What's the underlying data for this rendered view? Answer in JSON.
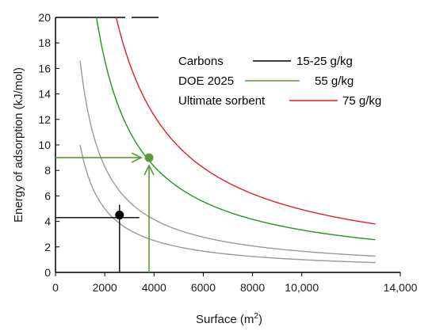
{
  "chart_data": {
    "type": "line",
    "xlabel": "Surface (m",
    "xlabel_sup": "2",
    "xlabel_end": ")",
    "ylabel": "Energy of adsorption (kJ/mol)",
    "xlim": [
      0,
      14000
    ],
    "ylim": [
      0,
      20
    ],
    "x_ticks": [
      {
        "value": 0,
        "label": "0"
      },
      {
        "value": 2000,
        "label": "2000"
      },
      {
        "value": 4000,
        "label": "4000"
      },
      {
        "value": 6000,
        "label": "6000"
      },
      {
        "value": 8000,
        "label": "8000"
      },
      {
        "value": 10000,
        "label": "10,000"
      },
      {
        "value": 14000,
        "label": "14,000"
      }
    ],
    "y_ticks": [
      0,
      2,
      4,
      6,
      8,
      10,
      12,
      14,
      16,
      18,
      20
    ],
    "series": [
      {
        "name": "Carbons",
        "legend_value": "15-25 g/kg",
        "color": "#000000",
        "curve_color": "#9a9a9a",
        "k": 10000,
        "x_start": 1000,
        "x_end": 13000
      },
      {
        "name": "Carbons",
        "legend_value": "15-25 g/kg",
        "color": "#000000",
        "curve_color": "#9a9a9a",
        "k": 16600,
        "x_start": 1000,
        "x_end": 13000
      },
      {
        "name": "DOE 2025",
        "legend_value": "55 g/kg",
        "color": "#5a9a3a",
        "curve_color": "#1a9a1a",
        "k": 33300,
        "x_start": 1665,
        "x_end": 13000
      },
      {
        "name": "Ultimate sorbent",
        "legend_value": "75 g/kg",
        "color": "#e02020",
        "curve_color": "#e02020",
        "k": 49300,
        "x_start": 2465,
        "x_end": 13000
      }
    ],
    "legend": [
      {
        "label": "Carbons",
        "value": "15-25 g/kg",
        "color": "#000000"
      },
      {
        "label": "DOE 2025",
        "value": "55 g/kg",
        "color": "#5a9a3a"
      },
      {
        "label": "Ultimate sorbent",
        "value": "75 g/kg",
        "color": "#e02020"
      }
    ],
    "legend_position": "top-right",
    "annotations": [
      {
        "kind": "point",
        "x": 2600,
        "y": 4.5,
        "color": "#000000"
      },
      {
        "kind": "point",
        "x": 3800,
        "y": 9.0,
        "color": "#5a9a3a"
      }
    ]
  }
}
